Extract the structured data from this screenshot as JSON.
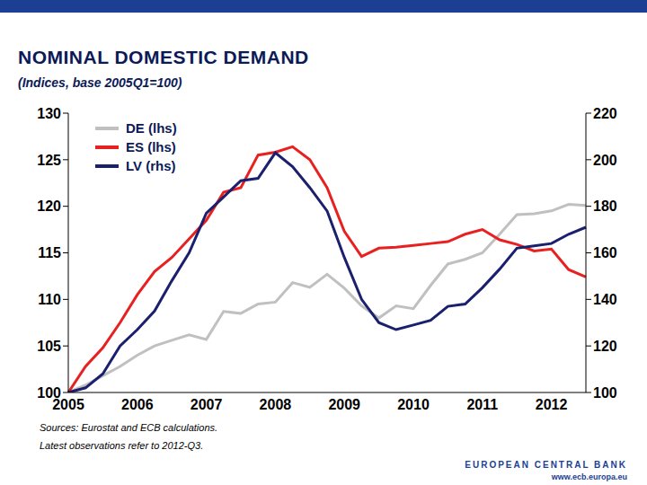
{
  "chart_data": {
    "type": "line",
    "title": "NOMINAL DOMESTIC DEMAND",
    "subtitle": "(Indices, base 2005Q1=100)",
    "annotations": [
      "Sources: Eurostat and ECB calculations.",
      "Latest observations refer to 2012-Q3.",
      "EUROPEAN CENTRAL BANK",
      "www.ecb.europa.eu"
    ],
    "categories": [
      "2005",
      null,
      null,
      null,
      "2006",
      null,
      null,
      null,
      "2007",
      null,
      null,
      null,
      "2008",
      null,
      null,
      null,
      "2009",
      null,
      null,
      null,
      "2010",
      null,
      null,
      null,
      "2011",
      null,
      null,
      null,
      "2012",
      null,
      null
    ],
    "series": [
      {
        "name": "DE (lhs)",
        "color": "#c0c0c0",
        "axis": "y",
        "values": [
          100,
          100.8,
          101.8,
          102.8,
          104,
          105,
          105.6,
          106.2,
          105.7,
          108.7,
          108.5,
          109.5,
          109.7,
          111.8,
          111.3,
          112.7,
          111.2,
          109.3,
          108,
          109.3,
          109,
          111.5,
          113.8,
          114.3,
          115,
          117,
          119.1,
          119.2,
          119.5,
          120.2,
          120.1
        ]
      },
      {
        "name": "ES (lhs)",
        "color": "#e8201f",
        "axis": "y",
        "values": [
          100,
          102.8,
          104.8,
          107.5,
          110.5,
          113,
          114.5,
          116.5,
          118.5,
          121.5,
          122,
          125.5,
          125.8,
          126.4,
          125,
          122,
          117.3,
          114.6,
          115.5,
          115.6,
          115.8,
          116,
          116.2,
          117,
          117.5,
          116.4,
          115.9,
          115.2,
          115.4,
          113.2,
          112.4
        ]
      },
      {
        "name": "LV (rhs)",
        "color": "#1a1f6e",
        "axis": "y2",
        "values": [
          100,
          102,
          108,
          120,
          127,
          135,
          148,
          160,
          177,
          184,
          191,
          192,
          203,
          197,
          188,
          178,
          158,
          140,
          130,
          127,
          129,
          131,
          137,
          138,
          145,
          153,
          162,
          163,
          164,
          168,
          171
        ]
      }
    ],
    "ylim": [
      100,
      130
    ],
    "yticks": [
      100,
      105,
      110,
      115,
      120,
      125,
      130
    ],
    "y2lim": [
      100,
      220
    ],
    "y2ticks": [
      100,
      120,
      140,
      160,
      180,
      200,
      220
    ],
    "grid": false,
    "legend": "top-left"
  }
}
